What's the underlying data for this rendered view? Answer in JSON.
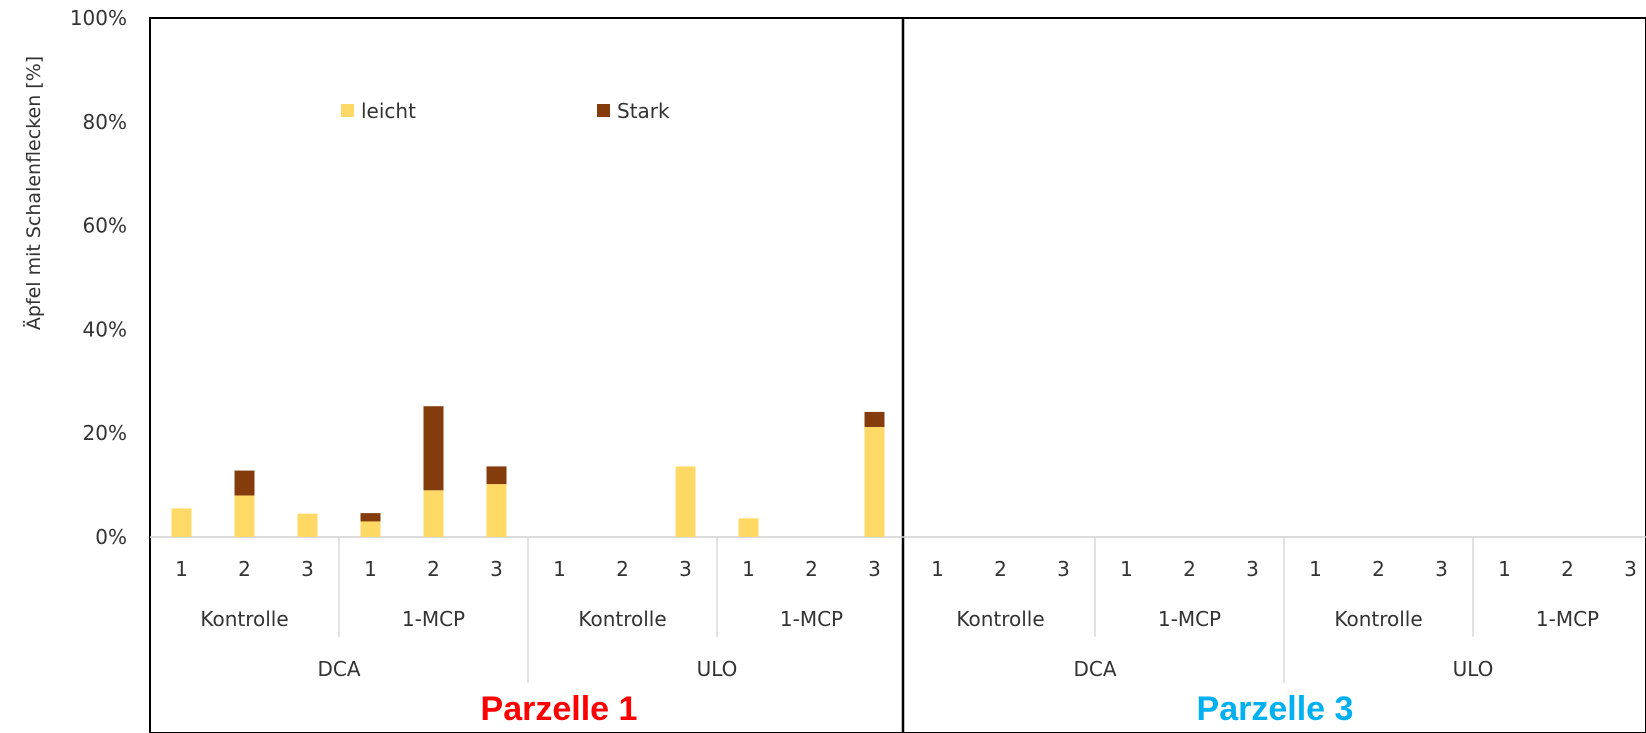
{
  "chart_data": {
    "type": "bar",
    "stacked": true,
    "y_axis": {
      "ticks": [
        "0%",
        "20%",
        "40%",
        "60%",
        "80%",
        "100%"
      ],
      "ylim": [
        0,
        100
      ]
    },
    "ylabel": "Äpfel mit Schalenflecken [%]",
    "legend": {
      "placement": "top-left, inside plot"
    },
    "colors": {
      "leicht": "#FFD966",
      "Stark": "#843C0C",
      "parzelle1": "#FF0000",
      "parzelle3": "#00B0F0"
    },
    "categories": [
      "1",
      "2",
      "3",
      "1",
      "2",
      "3",
      "1",
      "2",
      "3",
      "1",
      "2",
      "3",
      "1",
      "2",
      "3",
      "1",
      "2",
      "3",
      "1",
      "2",
      "3",
      "1",
      "2",
      "3"
    ],
    "group_level_1": [
      "Kontrolle",
      "1-MCP",
      "Kontrolle",
      "1-MCP",
      "Kontrolle",
      "1-MCP",
      "Kontrolle",
      "1-MCP"
    ],
    "group_level_2": [
      "DCA",
      "ULO",
      "DCA",
      "ULO"
    ],
    "panels": [
      "Parzelle 1",
      "Parzelle 3"
    ],
    "series": [
      {
        "name": "leicht",
        "values": [
          5.5,
          8,
          4.5,
          3,
          9,
          10.2,
          0,
          0,
          13.6,
          3.6,
          0,
          21.2,
          0,
          0,
          0,
          0,
          0,
          0,
          0,
          0,
          0,
          0,
          0,
          0
        ]
      },
      {
        "name": "Stark",
        "values": [
          0,
          4.8,
          0,
          1.6,
          16.2,
          3.4,
          0,
          0,
          0,
          0,
          0,
          2.9,
          0,
          0,
          0,
          0,
          0,
          0,
          0,
          0,
          0,
          0,
          0,
          0
        ]
      }
    ]
  }
}
